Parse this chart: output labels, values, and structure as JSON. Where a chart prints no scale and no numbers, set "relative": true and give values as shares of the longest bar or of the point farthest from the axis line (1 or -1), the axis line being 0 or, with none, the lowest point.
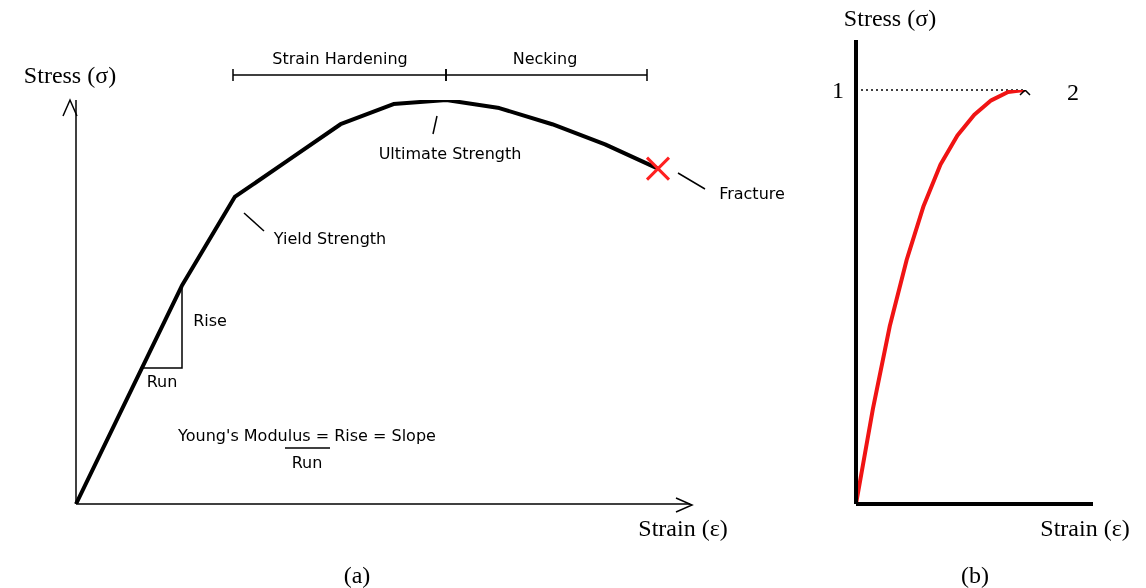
{
  "chart_data": [
    {
      "type": "line",
      "title": "(a)",
      "xlabel": "Strain (ε)",
      "ylabel": "Stress (σ)",
      "relative": true,
      "marker": "none",
      "categories": [
        null,
        null,
        null,
        null,
        null,
        null,
        null,
        null,
        null,
        null,
        null,
        null
      ],
      "series": [
        {
          "color": "#000000",
          "values": [
            0,
            0.27,
            0.54,
            0.76,
            0.85,
            0.94,
            0.99,
            1.0,
            0.98,
            0.94,
            0.89,
            0.83
          ]
        }
      ],
      "annotations": [
        "Strain Hardening",
        "Necking",
        "Ultimate Strength",
        "Yield Strength",
        "Fracture",
        "Rise",
        "Run",
        "Young's Modulus = Rise = Slope",
        "Run"
      ]
    },
    {
      "type": "line",
      "title": "(b)",
      "xlabel": "Strain (ε)",
      "ylabel": "Stress (σ)",
      "relative": true,
      "marker": "none",
      "categories": [
        null,
        null,
        null,
        null,
        null,
        null,
        null,
        null,
        null,
        null,
        null
      ],
      "series": [
        {
          "color": "#f01414",
          "values": [
            0,
            0.23,
            0.43,
            0.59,
            0.72,
            0.82,
            0.89,
            0.94,
            0.975,
            0.995,
            1.0
          ]
        }
      ],
      "ref_lines": [
        {
          "axis": "y",
          "value": 1,
          "label": "1",
          "line_style": "dotted",
          "color": "#000000"
        }
      ],
      "annotations": [
        "2"
      ]
    }
  ]
}
